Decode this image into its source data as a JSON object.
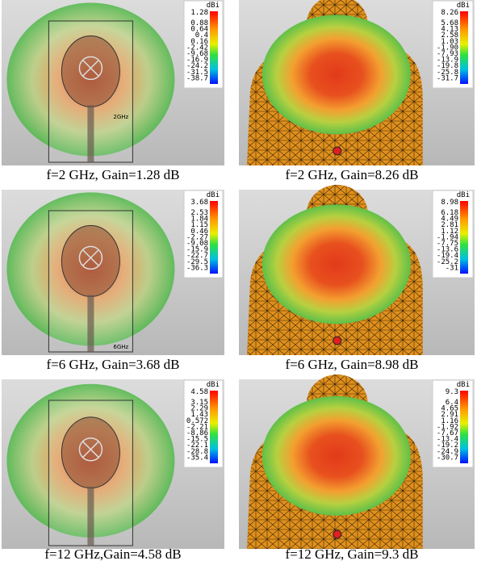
{
  "panels": [
    {
      "caption": "f=2 GHz, Gain=1.28 dB",
      "unit": "dBi",
      "scale": [
        "1.28",
        "0.88",
        "0.64",
        "0.4",
        "0.16",
        "-2.42",
        "-9.68",
        "-16.9",
        "-24.2",
        "-31.5",
        "-38.7"
      ],
      "label": "2GHz"
    },
    {
      "caption": "f=2 GHz, Gain=8.26 dB",
      "unit": "dBi",
      "scale": [
        "8.26",
        "5.68",
        "4.13",
        "2.58",
        "1.03",
        "-1.90",
        "-7.93",
        "-13.9",
        "-19.8",
        "-25.8",
        "-31.7"
      ]
    },
    {
      "caption": "f=6 GHz, Gain=3.68 dB",
      "unit": "dBi",
      "scale": [
        "3.68",
        "2.53",
        "1.84",
        "1.15",
        "0.46",
        "-2.27",
        "-9.08",
        "-15.9",
        "-22.7",
        "-29.5",
        "-36.3"
      ],
      "label": "6GHz"
    },
    {
      "caption": "f=6 GHz, Gain=8.98 dB",
      "unit": "dBi",
      "scale": [
        "8.98",
        "6.18",
        "4.49",
        "2.81",
        "1.12",
        "-1.94",
        "-7.75",
        "-13.6",
        "-19.4",
        "-25.2",
        "-31"
      ]
    },
    {
      "caption": "f=12 GHz,Gain=4.58 dB",
      "unit": "dBi",
      "scale": [
        "4.58",
        "3.15",
        "2.29",
        "1.43",
        "0.572",
        "-2.21",
        "-8.86",
        "-15.5",
        "-22.1",
        "-28.8",
        "-35.4"
      ]
    },
    {
      "caption": "f=12 GHz, Gain=9.3 dB",
      "unit": "dBi",
      "scale": [
        "9.3",
        "6.4",
        "4.65",
        "2.91",
        "1.16",
        "-1.92",
        "-7.67",
        "-13.4",
        "-19.2",
        "-24.9",
        "-30.7"
      ]
    }
  ]
}
